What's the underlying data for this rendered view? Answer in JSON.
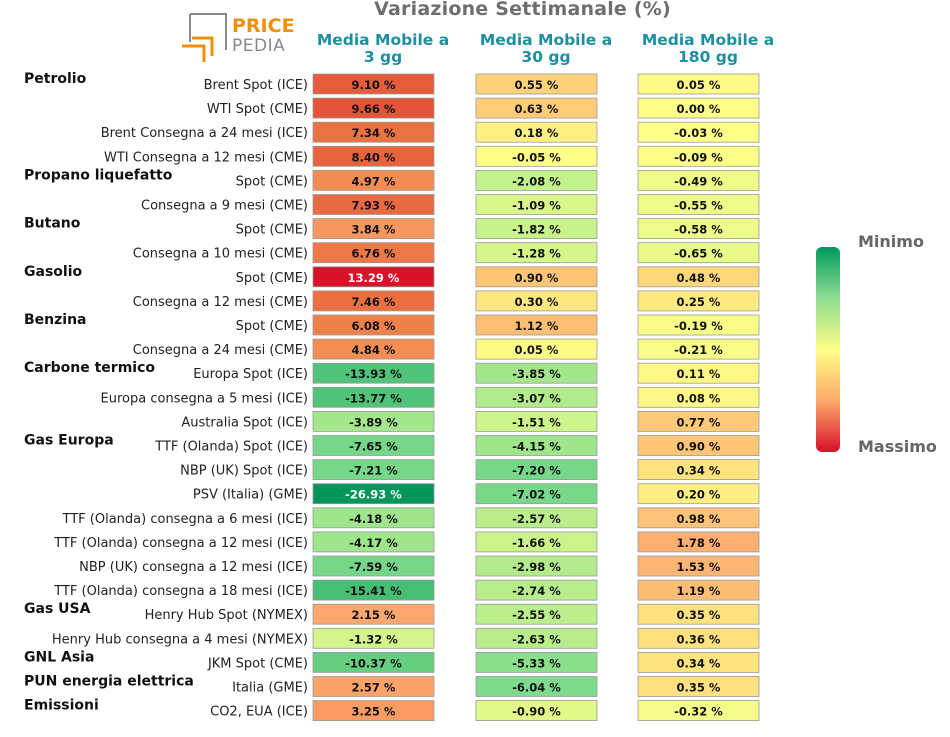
{
  "header": {
    "title": "Variazione Settimanale (%)",
    "columns": [
      "Media Mobile a\n3 gg",
      "Media Mobile a\n30 gg",
      "Media Mobile a\n180 gg"
    ]
  },
  "logo": {
    "line1": "PRICE",
    "line2": "PEDIA"
  },
  "legend": {
    "min_label": "Minimo",
    "max_label": "Massimo"
  },
  "colors": {
    "header_teal": "#1d8fa0",
    "logo_orange": "#f0900a",
    "logo_gray": "#8a8a8a",
    "title_gray": "#6e6e6e"
  },
  "chart_data": {
    "type": "table",
    "title": "Variazione Settimanale (%)",
    "unit": "%",
    "color_scale": {
      "min_label": "Minimo",
      "max_label": "Massimo",
      "stops": [
        "#009a5e",
        "#ffff88",
        "#d8102a"
      ]
    },
    "series_names": [
      "Media Mobile a 3 gg",
      "Media Mobile a 30 gg",
      "Media Mobile a 180 gg"
    ],
    "categories": [
      {
        "name": "Petrolio",
        "rows": [
          {
            "label": "Brent Spot (ICE)",
            "values": [
              9.1,
              0.55,
              0.05
            ]
          },
          {
            "label": "WTI Spot (CME)",
            "values": [
              9.66,
              0.63,
              0.0
            ]
          },
          {
            "label": "Brent Consegna a 24 mesi (ICE)",
            "values": [
              7.34,
              0.18,
              -0.03
            ]
          },
          {
            "label": "WTI Consegna a 12 mesi (CME)",
            "values": [
              8.4,
              -0.05,
              -0.09
            ]
          }
        ]
      },
      {
        "name": "Propano liquefatto",
        "rows": [
          {
            "label": "Spot (CME)",
            "values": [
              4.97,
              -2.08,
              -0.49
            ]
          },
          {
            "label": "Consegna a 9 mesi (CME)",
            "values": [
              7.93,
              -1.09,
              -0.55
            ]
          }
        ]
      },
      {
        "name": "Butano",
        "rows": [
          {
            "label": "Spot (CME)",
            "values": [
              3.84,
              -1.82,
              -0.58
            ]
          },
          {
            "label": "Consegna a 10 mesi (CME)",
            "values": [
              6.76,
              -1.28,
              -0.65
            ]
          }
        ]
      },
      {
        "name": "Gasolio",
        "rows": [
          {
            "label": "Spot (CME)",
            "values": [
              13.29,
              0.9,
              0.48
            ]
          },
          {
            "label": "Consegna a 12 mesi (CME)",
            "values": [
              7.46,
              0.3,
              0.25
            ]
          }
        ]
      },
      {
        "name": "Benzina",
        "rows": [
          {
            "label": "Spot (CME)",
            "values": [
              6.08,
              1.12,
              -0.19
            ]
          },
          {
            "label": "Consegna a 24 mesi (CME)",
            "values": [
              4.84,
              0.05,
              -0.21
            ]
          }
        ]
      },
      {
        "name": "Carbone termico",
        "rows": [
          {
            "label": "Europa Spot (ICE)",
            "values": [
              -13.93,
              -3.85,
              0.11
            ]
          },
          {
            "label": "Europa consegna a 5 mesi (ICE)",
            "values": [
              -13.77,
              -3.07,
              0.08
            ]
          },
          {
            "label": "Australia Spot (ICE)",
            "values": [
              -3.89,
              -1.51,
              0.77
            ]
          }
        ]
      },
      {
        "name": "Gas Europa",
        "rows": [
          {
            "label": "TTF (Olanda) Spot (ICE)",
            "values": [
              -7.65,
              -4.15,
              0.9
            ]
          },
          {
            "label": "NBP (UK) Spot (ICE)",
            "values": [
              -7.21,
              -7.2,
              0.34
            ]
          },
          {
            "label": "PSV (Italia) (GME)",
            "values": [
              -26.93,
              -7.02,
              0.2
            ]
          },
          {
            "label": "TTF (Olanda) consegna a 6 mesi (ICE)",
            "values": [
              -4.18,
              -2.57,
              0.98
            ]
          },
          {
            "label": "TTF (Olanda) consegna a 12 mesi (ICE)",
            "values": [
              -4.17,
              -1.66,
              1.78
            ]
          },
          {
            "label": "NBP (UK) consegna a 12 mesi (ICE)",
            "values": [
              -7.59,
              -2.98,
              1.53
            ]
          },
          {
            "label": "TTF (Olanda) consegna a 18 mesi (ICE)",
            "values": [
              -15.41,
              -2.74,
              1.19
            ]
          }
        ]
      },
      {
        "name": "Gas USA",
        "rows": [
          {
            "label": "Henry Hub Spot (NYMEX)",
            "values": [
              2.15,
              -2.55,
              0.35
            ]
          },
          {
            "label": "Henry Hub consegna a 4 mesi (NYMEX)",
            "values": [
              -1.32,
              -2.63,
              0.36
            ]
          }
        ]
      },
      {
        "name": "GNL Asia",
        "rows": [
          {
            "label": "JKM Spot (CME)",
            "values": [
              -10.37,
              -5.33,
              0.34
            ]
          }
        ]
      },
      {
        "name": "PUN energia elettrica",
        "rows": [
          {
            "label": "Italia (GME)",
            "values": [
              2.57,
              -6.04,
              0.35
            ]
          }
        ]
      },
      {
        "name": "Emissioni",
        "rows": [
          {
            "label": "CO2, EUA (ICE)",
            "values": [
              3.25,
              -0.9,
              -0.32
            ]
          }
        ]
      }
    ]
  }
}
